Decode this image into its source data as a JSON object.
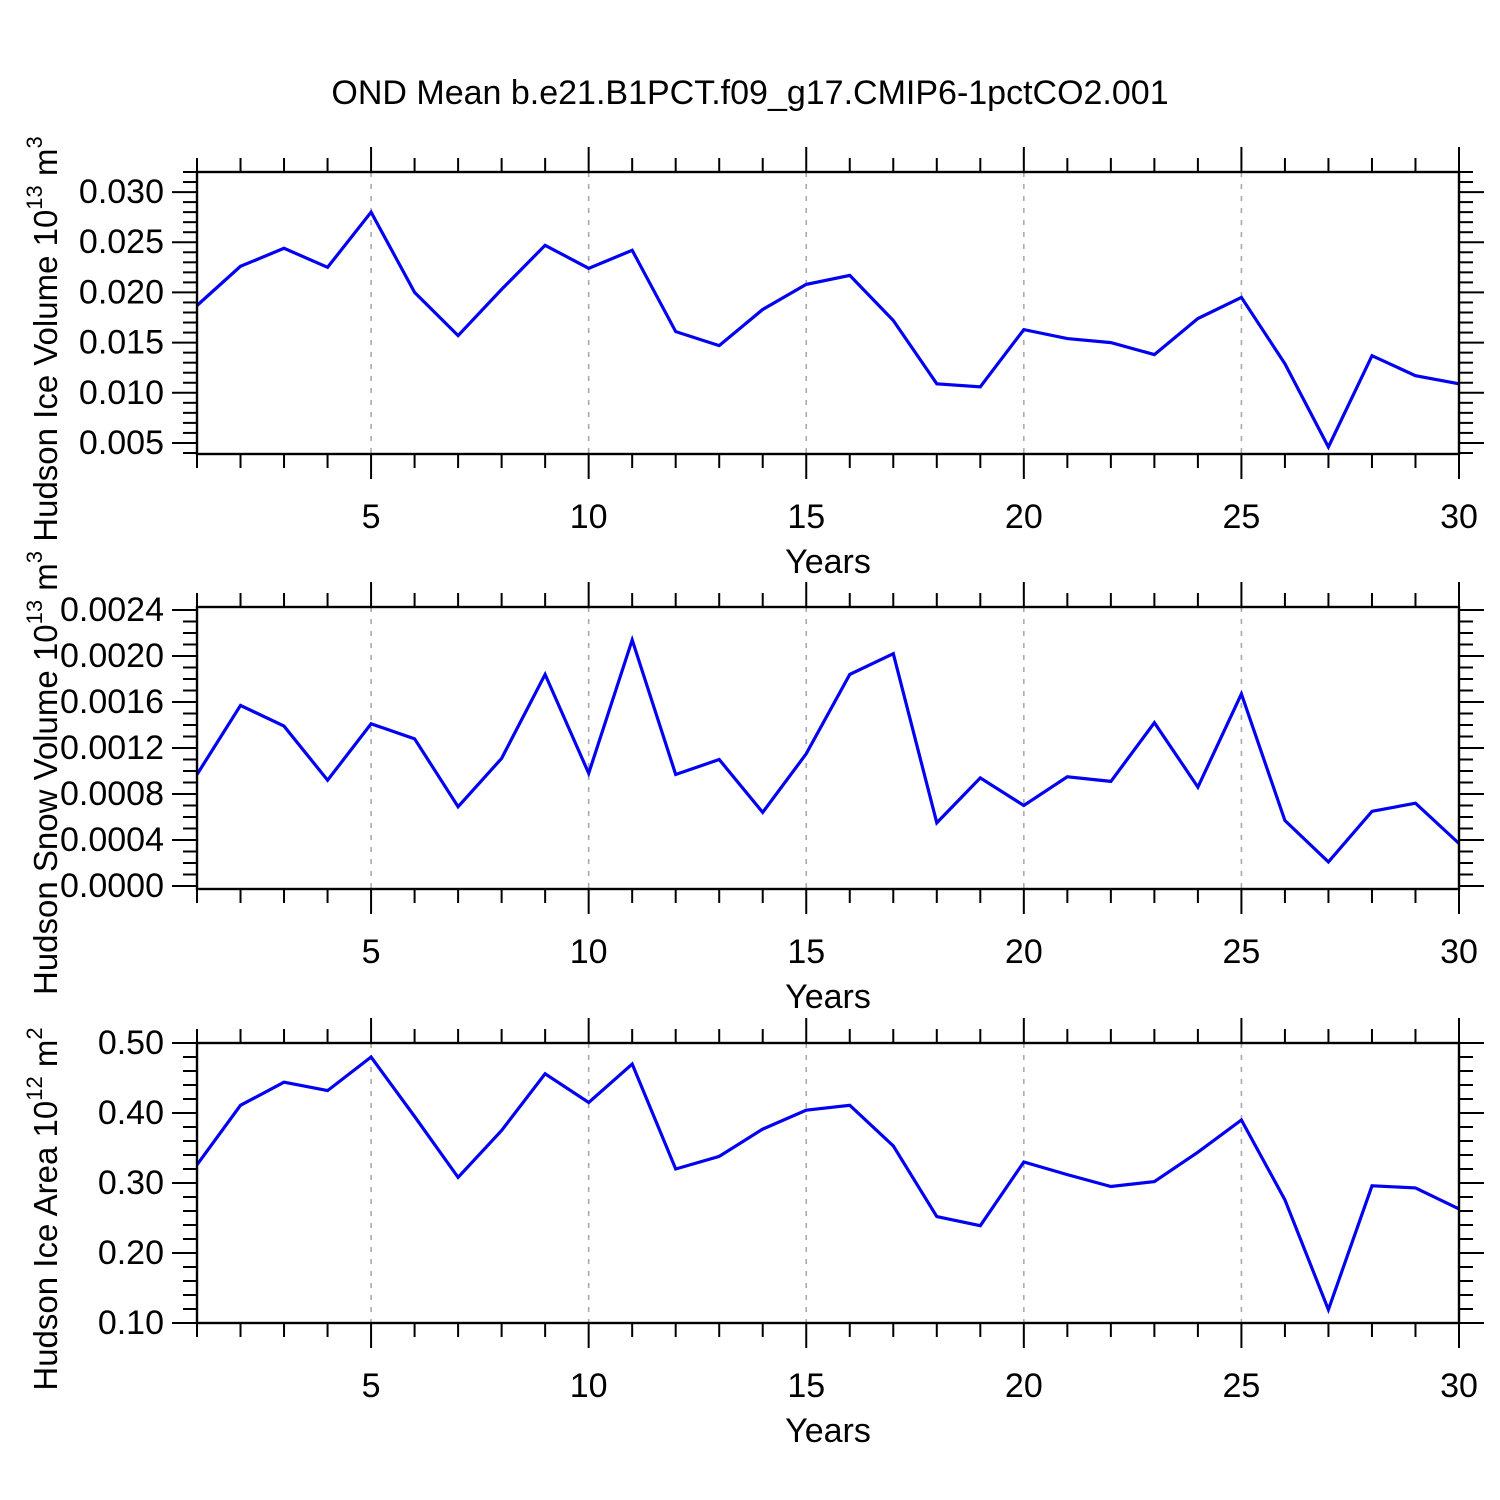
{
  "title": "OND Mean b.e21.B1PCT.f09_g17.CMIP6-1pctCO2.001",
  "line_color": "#0202f0",
  "grid_color": "#aaaaaa",
  "frame_color": "#000000",
  "text_color": "#000000",
  "chart_data": [
    {
      "type": "line",
      "name": "hudson-ice-volume",
      "ylabel_parts": [
        "Hudson Ice Volume 10",
        "13",
        " m",
        "3"
      ],
      "xlabel": "Years",
      "x": [
        1,
        2,
        3,
        4,
        5,
        6,
        7,
        8,
        9,
        10,
        11,
        12,
        13,
        14,
        15,
        16,
        17,
        18,
        19,
        20,
        21,
        22,
        23,
        24,
        25,
        26,
        27,
        28,
        29,
        30
      ],
      "values": [
        0.0187,
        0.0226,
        0.0244,
        0.0225,
        0.028,
        0.02,
        0.0157,
        0.0203,
        0.0247,
        0.0224,
        0.0242,
        0.0161,
        0.0147,
        0.0183,
        0.0208,
        0.0217,
        0.0172,
        0.0109,
        0.0106,
        0.0163,
        0.0154,
        0.015,
        0.0138,
        0.0174,
        0.0195,
        0.0129,
        0.0046,
        0.0137,
        0.0117,
        0.0109
      ],
      "xlim": [
        1,
        30
      ],
      "ylim": [
        0.0039,
        0.032
      ],
      "ytick_values": [
        0.005,
        0.01,
        0.015,
        0.02,
        0.025,
        0.03
      ],
      "ytick_labels": [
        "0.005",
        "0.010",
        "0.015",
        "0.020",
        "0.025",
        "0.030"
      ],
      "yminor_step": 0.001,
      "xtick_values": [
        5,
        10,
        15,
        20,
        25,
        30
      ],
      "xtick_labels": [
        "5",
        "10",
        "15",
        "20",
        "25",
        "30"
      ],
      "xminor_step": 1,
      "xgrid": [
        5,
        10,
        15,
        20,
        25
      ],
      "grid_style": "dashed-vertical"
    },
    {
      "type": "line",
      "name": "hudson-snow-volume",
      "ylabel_parts": [
        "Hudson Snow Volume 10",
        "13",
        " m",
        "3"
      ],
      "xlabel": "Years",
      "x": [
        1,
        2,
        3,
        4,
        5,
        6,
        7,
        8,
        9,
        10,
        11,
        12,
        13,
        14,
        15,
        16,
        17,
        18,
        19,
        20,
        21,
        22,
        23,
        24,
        25,
        26,
        27,
        28,
        29,
        30
      ],
      "values": [
        0.00097,
        0.00157,
        0.00139,
        0.00092,
        0.00141,
        0.00128,
        0.00069,
        0.00111,
        0.00184,
        0.00098,
        0.00214,
        0.00097,
        0.0011,
        0.00064,
        0.00115,
        0.00184,
        0.00202,
        0.00055,
        0.00094,
        0.0007,
        0.00095,
        0.00091,
        0.00142,
        0.00086,
        0.00167,
        0.00057,
        0.00021,
        0.00065,
        0.00072,
        0.00037
      ],
      "xlim": [
        1,
        30
      ],
      "ylim": [
        -2.6e-05,
        0.002426
      ],
      "ytick_values": [
        0.0,
        0.0004,
        0.0008,
        0.0012,
        0.0016,
        0.002,
        0.0024
      ],
      "ytick_labels": [
        "0.0000",
        "0.0004",
        "0.0008",
        "0.0012",
        "0.0016",
        "0.0020",
        "0.0024"
      ],
      "yminor_step": 0.0001,
      "xtick_values": [
        5,
        10,
        15,
        20,
        25,
        30
      ],
      "xtick_labels": [
        "5",
        "10",
        "15",
        "20",
        "25",
        "30"
      ],
      "xminor_step": 1,
      "xgrid": [
        5,
        10,
        15,
        20,
        25
      ],
      "grid_style": "dashed-vertical"
    },
    {
      "type": "line",
      "name": "hudson-ice-area",
      "ylabel_parts": [
        "Hudson Ice Area 10",
        "12",
        " m",
        "2"
      ],
      "xlabel": "Years",
      "x": [
        1,
        2,
        3,
        4,
        5,
        6,
        7,
        8,
        9,
        10,
        11,
        12,
        13,
        14,
        15,
        16,
        17,
        18,
        19,
        20,
        21,
        22,
        23,
        24,
        25,
        26,
        27,
        28,
        29,
        30
      ],
      "values": [
        0.326,
        0.411,
        0.444,
        0.432,
        0.48,
        0.395,
        0.308,
        0.375,
        0.456,
        0.415,
        0.47,
        0.32,
        0.338,
        0.377,
        0.404,
        0.411,
        0.353,
        0.252,
        0.239,
        0.33,
        0.312,
        0.295,
        0.302,
        0.344,
        0.39,
        0.276,
        0.119,
        0.296,
        0.293,
        0.263
      ],
      "xlim": [
        1,
        30
      ],
      "ylim": [
        0.1,
        0.5
      ],
      "ytick_values": [
        0.1,
        0.2,
        0.3,
        0.4,
        0.5
      ],
      "ytick_labels": [
        "0.10",
        "0.20",
        "0.30",
        "0.40",
        "0.50"
      ],
      "yminor_step": 0.02,
      "xtick_values": [
        5,
        10,
        15,
        20,
        25,
        30
      ],
      "xtick_labels": [
        "5",
        "10",
        "15",
        "20",
        "25",
        "30"
      ],
      "xminor_step": 1,
      "xgrid": [
        5,
        10,
        15,
        20,
        25
      ],
      "grid_style": "dashed-vertical"
    }
  ]
}
